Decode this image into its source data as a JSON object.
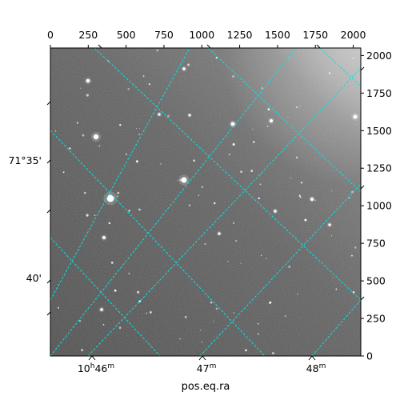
{
  "chart_data": {
    "type": "image",
    "xlabel": "pos.eq.ra",
    "ylabel": "",
    "pixel_x_ticks": [
      0,
      250,
      500,
      750,
      1000,
      1250,
      1500,
      1750,
      2000
    ],
    "pixel_y_ticks": [
      0,
      250,
      500,
      750,
      1000,
      1250,
      1500,
      1750,
      2000
    ],
    "pixel_xlim": [
      0,
      2050
    ],
    "pixel_ylim": [
      0,
      2050
    ],
    "ra_ticks": [
      {
        "h": "10",
        "m": "46",
        "show_hours": true
      },
      {
        "h": "10",
        "m": "47",
        "show_hours": false
      },
      {
        "h": "10",
        "m": "48",
        "show_hours": false
      }
    ],
    "dec_ticks": [
      {
        "label": "71°35'"
      },
      {
        "label": "40'"
      }
    ],
    "grid_color": "#00e5e5",
    "background": "grayscale sky image with stars"
  }
}
